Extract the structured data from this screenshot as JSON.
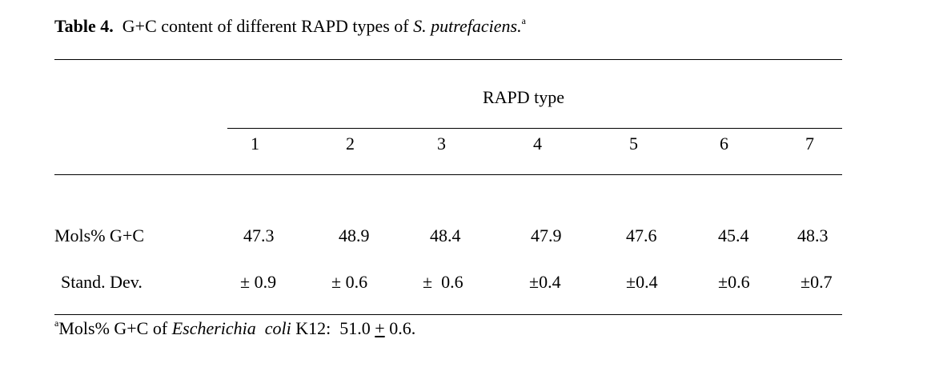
{
  "table": {
    "title_label": "Table 4.",
    "title_text": "G+C content of different RAPD types of",
    "title_species": "S. putrefaciens.",
    "title_sup": "a",
    "header_group": "RAPD type",
    "columns": [
      "1",
      "2",
      "3",
      "4",
      "5",
      "6",
      "7"
    ],
    "rows": [
      {
        "label": "Mols% G+C",
        "values": [
          "47.3",
          "48.9",
          "48.4",
          "47.9",
          "47.6",
          "45.4",
          "48.3"
        ]
      },
      {
        "label": "Stand. Dev.",
        "values": [
          "± 0.9",
          "± 0.6",
          "±  0.6",
          "±0.4",
          "±0.4",
          "±0.6",
          "±0.7"
        ]
      }
    ],
    "footnote": {
      "sup": "a",
      "prefix": "Mols% G+C of",
      "organism": "Escherichia  coli",
      "strain": "K12:",
      "value": "51.0",
      "pm": "+",
      "sd": "0.6."
    }
  }
}
